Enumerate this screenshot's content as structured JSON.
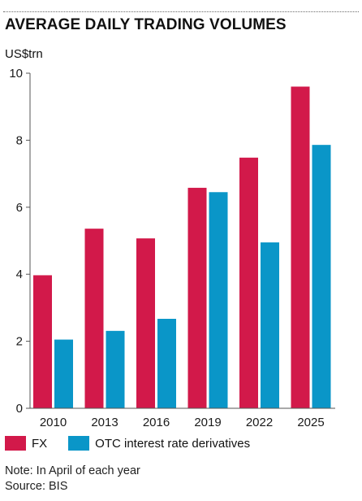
{
  "title": "AVERAGE DAILY TRADING VOLUMES",
  "unit_label": "US$trn",
  "notes": {
    "note": "Note: In April of each year",
    "source": "Source: BIS"
  },
  "colors": {
    "fx": "#d2194a",
    "otc": "#0a96c8"
  },
  "chart_data": {
    "type": "bar",
    "title": "AVERAGE DAILY TRADING VOLUMES",
    "ylabel": "US$trn",
    "xlabel": "",
    "categories": [
      "2010",
      "2013",
      "2016",
      "2019",
      "2022",
      "2025"
    ],
    "series": [
      {
        "name": "FX",
        "values": [
          3.97,
          5.36,
          5.07,
          6.58,
          7.48,
          9.6
        ]
      },
      {
        "name": "OTC interest rate derivatives",
        "values": [
          2.05,
          2.31,
          2.67,
          6.45,
          4.95,
          7.86
        ]
      }
    ],
    "ylim": [
      0,
      10
    ],
    "yticks": [
      "0",
      "2",
      "4",
      "6",
      "8",
      "10"
    ],
    "grid": false,
    "legend": "bottom-left"
  }
}
